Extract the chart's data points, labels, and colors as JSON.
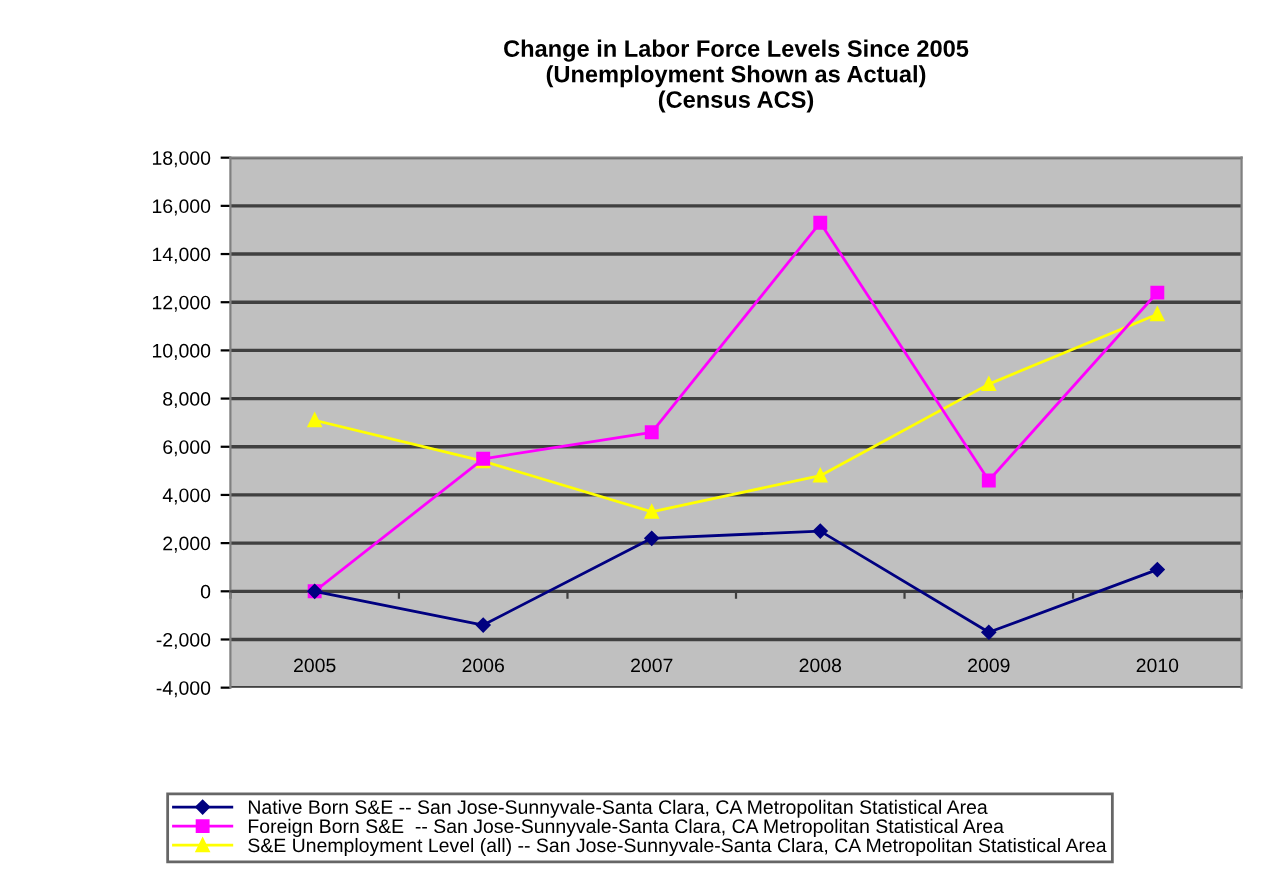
{
  "chart_data": {
    "type": "line",
    "title": "Change in Labor Force Levels Since 2005\n(Unemployment Shown as Actual)\n(Census ACS)",
    "categories": [
      "2005",
      "2006",
      "2007",
      "2008",
      "2009",
      "2010"
    ],
    "series": [
      {
        "name": "Native Born S&E -- San Jose-Sunnyvale-Santa Clara, CA Metropolitan Statistical Area",
        "color": "#000080",
        "marker": "diamond",
        "values": [
          0,
          -1400,
          2200,
          2500,
          -1700,
          900
        ]
      },
      {
        "name": "Foreign Born S&E  -- San Jose-Sunnyvale-Santa Clara, CA Metropolitan Statistical Area",
        "color": "#ff00ff",
        "marker": "square",
        "values": [
          0,
          5500,
          6600,
          15300,
          4600,
          12400
        ]
      },
      {
        "name": "S&E Unemployment Level (all) -- San Jose-Sunnyvale-Santa Clara, CA Metropolitan Statistical Area",
        "color": "#ffff00",
        "marker": "triangle",
        "values": [
          7100,
          5400,
          3300,
          4800,
          8600,
          11500
        ]
      }
    ],
    "ylim": [
      -4000,
      18000
    ],
    "yticks": [
      {
        "value": -4000,
        "label": "-4,000"
      },
      {
        "value": -2000,
        "label": "-2,000"
      },
      {
        "value": 0,
        "label": "0"
      },
      {
        "value": 2000,
        "label": "2,000"
      },
      {
        "value": 4000,
        "label": "4,000"
      },
      {
        "value": 6000,
        "label": "6,000"
      },
      {
        "value": 8000,
        "label": "8,000"
      },
      {
        "value": 10000,
        "label": "10,000"
      },
      {
        "value": 12000,
        "label": "12,000"
      },
      {
        "value": 14000,
        "label": "14,000"
      },
      {
        "value": 16000,
        "label": "16,000"
      },
      {
        "value": 18000,
        "label": "18,000"
      }
    ],
    "grid": "y",
    "legend": "bottom",
    "line_style": "solid"
  }
}
